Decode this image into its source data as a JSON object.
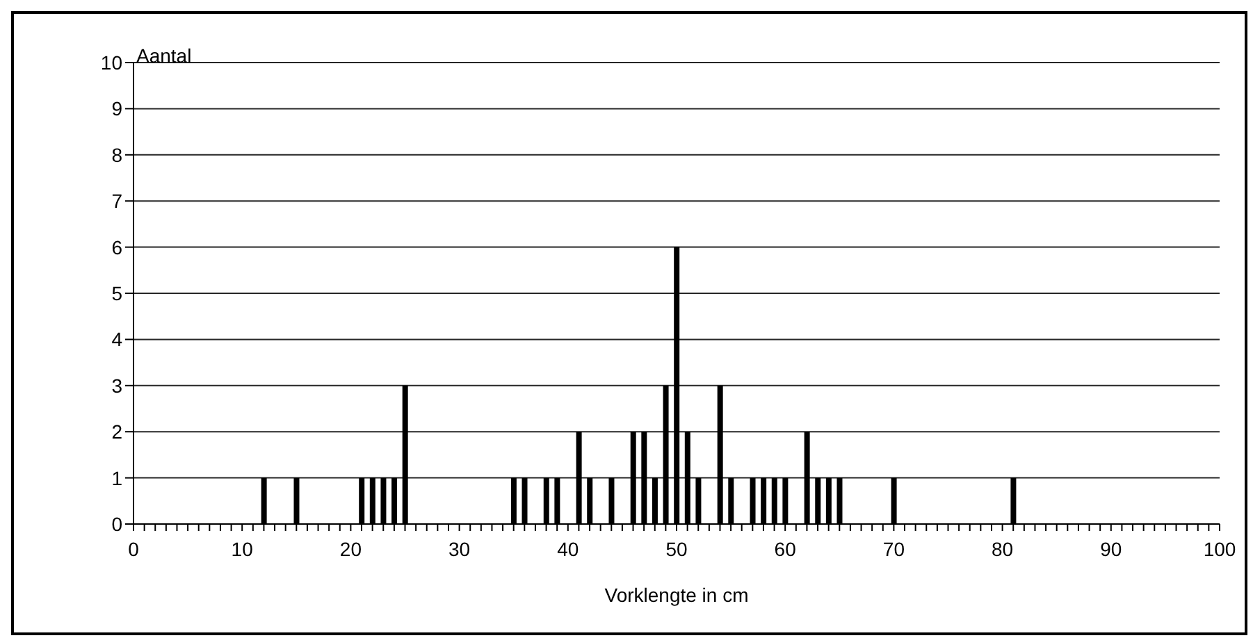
{
  "chart_data": {
    "type": "bar",
    "xlabel": "Vorklengte in cm",
    "ylabel": "Aantal",
    "x": [
      12,
      15,
      21,
      22,
      23,
      24,
      25,
      35,
      36,
      38,
      39,
      41,
      42,
      44,
      46,
      47,
      48,
      49,
      50,
      51,
      52,
      54,
      55,
      57,
      58,
      59,
      60,
      62,
      63,
      64,
      65,
      70,
      81
    ],
    "values": [
      1,
      1,
      1,
      1,
      1,
      1,
      3,
      1,
      1,
      1,
      1,
      2,
      1,
      1,
      2,
      2,
      1,
      3,
      6,
      2,
      1,
      3,
      1,
      1,
      1,
      1,
      1,
      2,
      1,
      1,
      1,
      1,
      1
    ],
    "color": "#000000",
    "xlim": [
      0,
      100
    ],
    "xticks": [
      0,
      {
        "value": 1,
        "label": null
      },
      {
        "value": 2,
        "label": null
      },
      {
        "value": 3,
        "label": null
      },
      {
        "value": 4,
        "label": null
      },
      {
        "value": 5,
        "label": null
      },
      {
        "value": 6,
        "label": null
      },
      {
        "value": 7,
        "label": null
      },
      {
        "value": 8,
        "label": null
      },
      {
        "value": 9,
        "label": null
      },
      10,
      {
        "value": 11,
        "label": null
      },
      {
        "value": 12,
        "label": null
      },
      {
        "value": 13,
        "label": null
      },
      {
        "value": 14,
        "label": null
      },
      {
        "value": 15,
        "label": null
      },
      {
        "value": 16,
        "label": null
      },
      {
        "value": 17,
        "label": null
      },
      {
        "value": 18,
        "label": null
      },
      {
        "value": 19,
        "label": null
      },
      20,
      {
        "value": 21,
        "label": null
      },
      {
        "value": 22,
        "label": null
      },
      {
        "value": 23,
        "label": null
      },
      {
        "value": 24,
        "label": null
      },
      {
        "value": 25,
        "label": null
      },
      {
        "value": 26,
        "label": null
      },
      {
        "value": 27,
        "label": null
      },
      {
        "value": 28,
        "label": null
      },
      {
        "value": 29,
        "label": null
      },
      30,
      {
        "value": 31,
        "label": null
      },
      {
        "value": 32,
        "label": null
      },
      {
        "value": 33,
        "label": null
      },
      {
        "value": 34,
        "label": null
      },
      {
        "value": 35,
        "label": null
      },
      {
        "value": 36,
        "label": null
      },
      {
        "value": 37,
        "label": null
      },
      {
        "value": 38,
        "label": null
      },
      {
        "value": 39,
        "label": null
      },
      40,
      {
        "value": 41,
        "label": null
      },
      {
        "value": 42,
        "label": null
      },
      {
        "value": 43,
        "label": null
      },
      {
        "value": 44,
        "label": null
      },
      {
        "value": 45,
        "label": null
      },
      {
        "value": 46,
        "label": null
      },
      {
        "value": 47,
        "label": null
      },
      {
        "value": 48,
        "label": null
      },
      {
        "value": 49,
        "label": null
      },
      50,
      {
        "value": 51,
        "label": null
      },
      {
        "value": 52,
        "label": null
      },
      {
        "value": 53,
        "label": null
      },
      {
        "value": 54,
        "label": null
      },
      {
        "value": 55,
        "label": null
      },
      {
        "value": 56,
        "label": null
      },
      {
        "value": 57,
        "label": null
      },
      {
        "value": 58,
        "label": null
      },
      {
        "value": 59,
        "label": null
      },
      60,
      {
        "value": 61,
        "label": null
      },
      {
        "value": 62,
        "label": null
      },
      {
        "value": 63,
        "label": null
      },
      {
        "value": 64,
        "label": null
      },
      {
        "value": 65,
        "label": null
      },
      {
        "value": 66,
        "label": null
      },
      {
        "value": 67,
        "label": null
      },
      {
        "value": 68,
        "label": null
      },
      {
        "value": 69,
        "label": null
      },
      70,
      {
        "value": 71,
        "label": null
      },
      {
        "value": 72,
        "label": null
      },
      {
        "value": 73,
        "label": null
      },
      {
        "value": 74,
        "label": null
      },
      {
        "value": 75,
        "label": null
      },
      {
        "value": 76,
        "label": null
      },
      {
        "value": 77,
        "label": null
      },
      {
        "value": 78,
        "label": null
      },
      {
        "value": 79,
        "label": null
      },
      80,
      {
        "value": 81,
        "label": null
      },
      {
        "value": 82,
        "label": null
      },
      {
        "value": 83,
        "label": null
      },
      {
        "value": 84,
        "label": null
      },
      {
        "value": 85,
        "label": null
      },
      {
        "value": 86,
        "label": null
      },
      {
        "value": 87,
        "label": null
      },
      {
        "value": 88,
        "label": null
      },
      {
        "value": 89,
        "label": null
      },
      90,
      {
        "value": 91,
        "label": null
      },
      {
        "value": 92,
        "label": null
      },
      {
        "value": 93,
        "label": null
      },
      {
        "value": 94,
        "label": null
      },
      {
        "value": 95,
        "label": null
      },
      {
        "value": 96,
        "label": null
      },
      {
        "value": 97,
        "label": null
      },
      {
        "value": 98,
        "label": null
      },
      {
        "value": 99,
        "label": null
      },
      100
    ],
    "ylim": [
      0,
      10
    ],
    "yticks": [
      0,
      1,
      2,
      3,
      4,
      5,
      6,
      7,
      8,
      9,
      10
    ],
    "grid": "y"
  }
}
